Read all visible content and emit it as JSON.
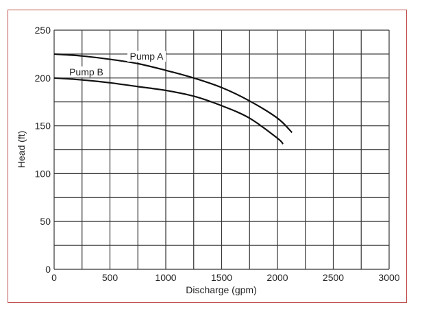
{
  "chart_data": {
    "type": "line",
    "title": "",
    "xlabel": "Discharge (gpm)",
    "ylabel": "Head (ft)",
    "xlim": [
      0,
      3000
    ],
    "ylim": [
      0,
      250
    ],
    "x_ticks": [
      0,
      500,
      1000,
      1500,
      2000,
      2500,
      3000
    ],
    "y_ticks": [
      0,
      50,
      100,
      150,
      200,
      250
    ],
    "x_grid_step": 250,
    "y_grid_step": 25,
    "grid": true,
    "legend": "inline labels",
    "series": [
      {
        "name": "Pump A",
        "x": [
          0,
          250,
          500,
          750,
          1000,
          1250,
          1500,
          1750,
          2000,
          2130
        ],
        "y": [
          225,
          223,
          219.5,
          215,
          208,
          200,
          190,
          176,
          158,
          143
        ]
      },
      {
        "name": "Pump B",
        "x": [
          0,
          250,
          500,
          750,
          1000,
          1250,
          1500,
          1750,
          2000,
          2050
        ],
        "y": [
          200,
          198,
          195,
          191,
          187,
          181,
          171,
          158,
          137,
          131
        ]
      }
    ]
  },
  "colors": {
    "frame_border": "#c0504d",
    "grid": "#333333",
    "curve": "#111111"
  }
}
